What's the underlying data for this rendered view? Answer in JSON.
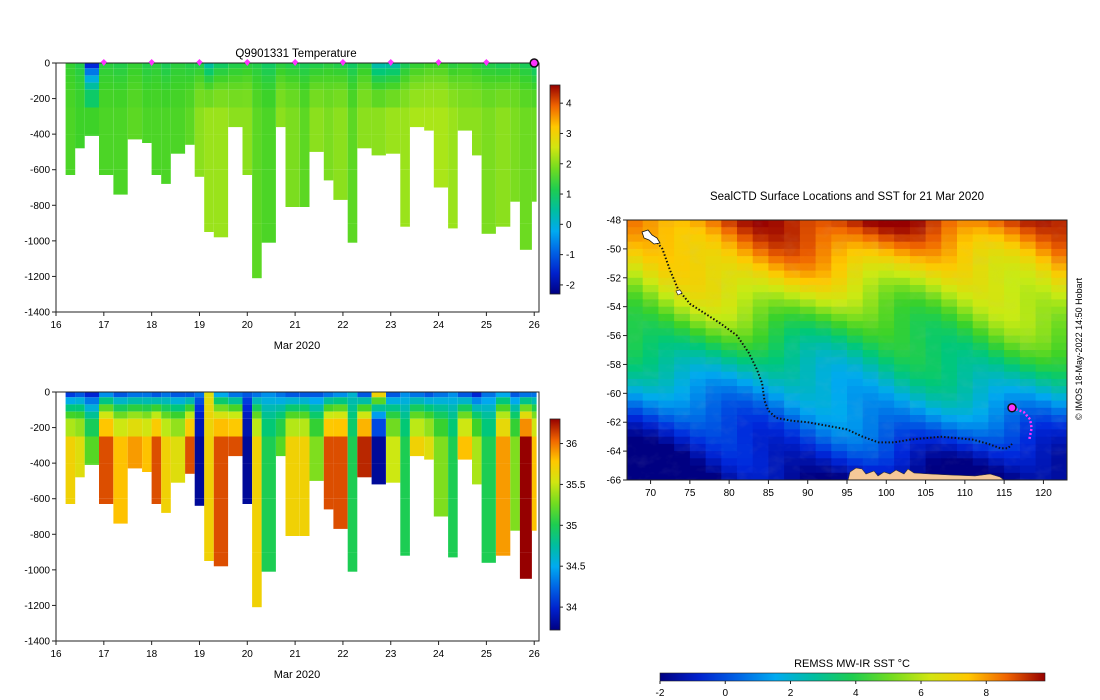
{
  "chart_data": [
    {
      "id": "temperature",
      "type": "heatmap",
      "title": "Q9901331  Temperature",
      "xlabel": "Mar 2020",
      "xlim": [
        16,
        26.1
      ],
      "xticks": [
        "16",
        "17",
        "18",
        "19",
        "20",
        "21",
        "22",
        "23",
        "24",
        "25",
        "26"
      ],
      "ylim": [
        -1400,
        0
      ],
      "yticks": [
        "0",
        "-200",
        "-400",
        "-600",
        "-800",
        "-1000",
        "-1200",
        "-1400"
      ],
      "colorbar": {
        "range": [
          -2.3,
          4.6
        ],
        "ticks": [
          "-2",
          "-1",
          "0",
          "1",
          "2",
          "3",
          "4"
        ]
      },
      "surface_markers_day": [
        17,
        18,
        19,
        20,
        21,
        22,
        23,
        24,
        25
      ],
      "last_profile_day": 26,
      "profiles": [
        {
          "day": 16.2,
          "depth": 630,
          "surf": 1.4,
          "deep": 1.6
        },
        {
          "day": 16.4,
          "depth": 480,
          "surf": 1.2,
          "deep": 1.5
        },
        {
          "day": 16.6,
          "depth": 410,
          "surf": -1.5,
          "deep": 1.5
        },
        {
          "day": 16.9,
          "depth": 630,
          "surf": 1.3,
          "deep": 1.6
        },
        {
          "day": 17.2,
          "depth": 740,
          "surf": 1.2,
          "deep": 1.6
        },
        {
          "day": 17.5,
          "depth": 430,
          "surf": 1.4,
          "deep": 1.7
        },
        {
          "day": 17.8,
          "depth": 450,
          "surf": 1.2,
          "deep": 1.6
        },
        {
          "day": 18.0,
          "depth": 630,
          "surf": 1.3,
          "deep": 1.6
        },
        {
          "day": 18.2,
          "depth": 680,
          "surf": 1.1,
          "deep": 1.6
        },
        {
          "day": 18.4,
          "depth": 510,
          "surf": 1.3,
          "deep": 1.6
        },
        {
          "day": 18.7,
          "depth": 460,
          "surf": 1.2,
          "deep": 1.7
        },
        {
          "day": 18.9,
          "depth": 640,
          "surf": 1.2,
          "deep": 2.0
        },
        {
          "day": 19.1,
          "depth": 950,
          "surf": 0.5,
          "deep": 2.1
        },
        {
          "day": 19.3,
          "depth": 980,
          "surf": 1.0,
          "deep": 2.1
        },
        {
          "day": 19.6,
          "depth": 360,
          "surf": 1.2,
          "deep": 2.0
        },
        {
          "day": 19.9,
          "depth": 630,
          "surf": 1.3,
          "deep": 2.0
        },
        {
          "day": 20.1,
          "depth": 1210,
          "surf": 1.2,
          "deep": 1.7
        },
        {
          "day": 20.3,
          "depth": 1010,
          "surf": 1.0,
          "deep": 1.6
        },
        {
          "day": 20.6,
          "depth": 360,
          "surf": 1.3,
          "deep": 2.0
        },
        {
          "day": 20.8,
          "depth": 810,
          "surf": 1.2,
          "deep": 1.9
        },
        {
          "day": 21.1,
          "depth": 810,
          "surf": 1.1,
          "deep": 1.7
        },
        {
          "day": 21.3,
          "depth": 500,
          "surf": 1.2,
          "deep": 2.0
        },
        {
          "day": 21.6,
          "depth": 660,
          "surf": 1.3,
          "deep": 1.9
        },
        {
          "day": 21.8,
          "depth": 770,
          "surf": 1.2,
          "deep": 2.0
        },
        {
          "day": 22.1,
          "depth": 1010,
          "surf": 1.0,
          "deep": 1.7
        },
        {
          "day": 22.3,
          "depth": 480,
          "surf": 1.3,
          "deep": 2.0
        },
        {
          "day": 22.6,
          "depth": 520,
          "surf": 0.4,
          "deep": 2.0
        },
        {
          "day": 22.9,
          "depth": 510,
          "surf": 0.5,
          "deep": 2.1
        },
        {
          "day": 23.2,
          "depth": 920,
          "surf": 1.1,
          "deep": 2.1
        },
        {
          "day": 23.4,
          "depth": 360,
          "surf": 1.4,
          "deep": 2.2
        },
        {
          "day": 23.7,
          "depth": 380,
          "surf": 1.5,
          "deep": 2.2
        },
        {
          "day": 23.9,
          "depth": 700,
          "surf": 1.5,
          "deep": 2.2
        },
        {
          "day": 24.2,
          "depth": 930,
          "surf": 1.3,
          "deep": 2.1
        },
        {
          "day": 24.4,
          "depth": 380,
          "surf": 1.4,
          "deep": 2.0
        },
        {
          "day": 24.7,
          "depth": 520,
          "surf": 1.3,
          "deep": 2.0
        },
        {
          "day": 24.9,
          "depth": 960,
          "surf": 1.2,
          "deep": 1.9
        },
        {
          "day": 25.2,
          "depth": 920,
          "surf": 1.1,
          "deep": 2.0
        },
        {
          "day": 25.5,
          "depth": 780,
          "surf": 1.3,
          "deep": 1.9
        },
        {
          "day": 25.7,
          "depth": 1050,
          "surf": 1.1,
          "deep": 1.8
        },
        {
          "day": 25.95,
          "depth": 780,
          "surf": 0.8,
          "deep": 1.8
        }
      ]
    },
    {
      "id": "salinity",
      "type": "heatmap",
      "title": "",
      "xlabel": "Mar 2020",
      "xlim": [
        16,
        26.1
      ],
      "xticks": [
        "16",
        "17",
        "18",
        "19",
        "20",
        "21",
        "22",
        "23",
        "24",
        "25",
        "26"
      ],
      "ylim": [
        -1400,
        0
      ],
      "yticks": [
        "0",
        "-200",
        "-400",
        "-600",
        "-800",
        "-1000",
        "-1200",
        "-1400"
      ],
      "colorbar": {
        "range": [
          33.72,
          36.3
        ],
        "ticks": [
          "34",
          "34.5",
          "35",
          "35.5",
          "36"
        ]
      },
      "profiles": [
        {
          "day": 16.2,
          "depth": 630,
          "surf": 34.1,
          "deep": 35.7
        },
        {
          "day": 16.4,
          "depth": 480,
          "surf": 34.2,
          "deep": 35.6
        },
        {
          "day": 16.6,
          "depth": 410,
          "surf": 34.0,
          "deep": 35.2
        },
        {
          "day": 16.9,
          "depth": 630,
          "surf": 34.4,
          "deep": 36.1
        },
        {
          "day": 17.2,
          "depth": 740,
          "surf": 34.2,
          "deep": 35.8
        },
        {
          "day": 17.5,
          "depth": 430,
          "surf": 34.3,
          "deep": 35.9
        },
        {
          "day": 17.8,
          "depth": 450,
          "surf": 34.3,
          "deep": 35.8
        },
        {
          "day": 18.0,
          "depth": 630,
          "surf": 34.2,
          "deep": 36.1
        },
        {
          "day": 18.2,
          "depth": 680,
          "surf": 34.3,
          "deep": 35.7
        },
        {
          "day": 18.4,
          "depth": 510,
          "surf": 34.2,
          "deep": 35.6
        },
        {
          "day": 18.7,
          "depth": 460,
          "surf": 34.2,
          "deep": 36.1
        },
        {
          "day": 18.9,
          "depth": 640,
          "surf": 34.3,
          "deep": 33.8
        },
        {
          "day": 19.1,
          "depth": 950,
          "surf": 35.6,
          "deep": 35.7
        },
        {
          "day": 19.3,
          "depth": 980,
          "surf": 34.5,
          "deep": 36.1
        },
        {
          "day": 19.6,
          "depth": 360,
          "surf": 34.3,
          "deep": 36.1
        },
        {
          "day": 19.9,
          "depth": 630,
          "surf": 34.2,
          "deep": 33.8
        },
        {
          "day": 20.1,
          "depth": 1210,
          "surf": 34.3,
          "deep": 35.7
        },
        {
          "day": 20.3,
          "depth": 1010,
          "surf": 34.4,
          "deep": 35.0
        },
        {
          "day": 20.6,
          "depth": 360,
          "surf": 34.3,
          "deep": 35.2
        },
        {
          "day": 20.8,
          "depth": 810,
          "surf": 34.2,
          "deep": 35.7
        },
        {
          "day": 21.1,
          "depth": 810,
          "surf": 34.2,
          "deep": 35.7
        },
        {
          "day": 21.3,
          "depth": 500,
          "surf": 34.2,
          "deep": 35.3
        },
        {
          "day": 21.6,
          "depth": 660,
          "surf": 34.3,
          "deep": 36.1
        },
        {
          "day": 21.8,
          "depth": 770,
          "surf": 34.4,
          "deep": 36.1
        },
        {
          "day": 22.1,
          "depth": 1010,
          "surf": 34.6,
          "deep": 35.0
        },
        {
          "day": 22.3,
          "depth": 480,
          "surf": 34.2,
          "deep": 36.2
        },
        {
          "day": 22.6,
          "depth": 520,
          "surf": 35.7,
          "deep": 33.8
        },
        {
          "day": 22.9,
          "depth": 510,
          "surf": 34.2,
          "deep": 35.5
        },
        {
          "day": 23.2,
          "depth": 920,
          "surf": 34.4,
          "deep": 35.0
        },
        {
          "day": 23.4,
          "depth": 360,
          "surf": 34.3,
          "deep": 35.7
        },
        {
          "day": 23.7,
          "depth": 380,
          "surf": 34.2,
          "deep": 35.6
        },
        {
          "day": 23.9,
          "depth": 700,
          "surf": 34.3,
          "deep": 35.3
        },
        {
          "day": 24.2,
          "depth": 930,
          "surf": 34.4,
          "deep": 35.0
        },
        {
          "day": 24.4,
          "depth": 380,
          "surf": 34.2,
          "deep": 35.8
        },
        {
          "day": 24.7,
          "depth": 520,
          "surf": 34.0,
          "deep": 35.4
        },
        {
          "day": 24.9,
          "depth": 960,
          "surf": 34.3,
          "deep": 35.0
        },
        {
          "day": 25.2,
          "depth": 920,
          "surf": 34.5,
          "deep": 35.9
        },
        {
          "day": 25.5,
          "depth": 780,
          "surf": 34.2,
          "deep": 35.3
        },
        {
          "day": 25.7,
          "depth": 1050,
          "surf": 34.3,
          "deep": 36.3
        },
        {
          "day": 25.95,
          "depth": 780,
          "surf": 34.3,
          "deep": 35.8
        }
      ]
    },
    {
      "id": "sst_map",
      "type": "heatmap",
      "title": "SealCTD Surface Locations and SST for 21 Mar 2020",
      "xlabel": "",
      "xlim": [
        67,
        123
      ],
      "ylim": [
        -66,
        -48
      ],
      "xticks": [
        "70",
        "75",
        "80",
        "85",
        "90",
        "95",
        "100",
        "105",
        "110",
        "115",
        "120"
      ],
      "yticks": [
        "-48",
        "-50",
        "-52",
        "-54",
        "-56",
        "-58",
        "-60",
        "-62",
        "-64",
        "-66"
      ],
      "colorbar": {
        "label": "REMSS MW-IR SST °C",
        "range": [
          -2,
          9.8
        ],
        "ticks": [
          "-2",
          "0",
          "2",
          "4",
          "6",
          "8"
        ]
      },
      "track_lon": [
        70.0,
        71.5,
        72.5,
        73.5,
        75.0,
        77.0,
        79.0,
        81.0,
        82.5,
        83.5,
        84.2,
        84.5,
        85.0,
        86.0,
        88.0,
        90.0,
        92.0,
        95.0,
        97.0,
        99.0,
        101.0,
        103.0,
        105.0,
        107.0,
        109.0,
        111.0,
        113.0,
        114.5,
        115.5,
        116.0
      ],
      "track_lat": [
        -49.0,
        -50.0,
        -51.5,
        -52.8,
        -53.8,
        -54.5,
        -55.2,
        -56.0,
        -57.2,
        -58.3,
        -59.3,
        -60.5,
        -61.2,
        -61.7,
        -61.9,
        -62.0,
        -62.2,
        -62.5,
        -63.0,
        -63.4,
        -63.4,
        -63.2,
        -63.1,
        -63.0,
        -63.1,
        -63.2,
        -63.5,
        -63.8,
        -63.8,
        -63.5
      ],
      "recent_lon": [
        116.0,
        117.5,
        118.3,
        118.5,
        118.2
      ],
      "recent_lat": [
        -61.0,
        -61.3,
        -61.8,
        -62.4,
        -63.2
      ],
      "current_position": [
        116.0,
        -61.0
      ],
      "credit": "© IMOS 18-May-2022 14:50 Hobart"
    }
  ]
}
